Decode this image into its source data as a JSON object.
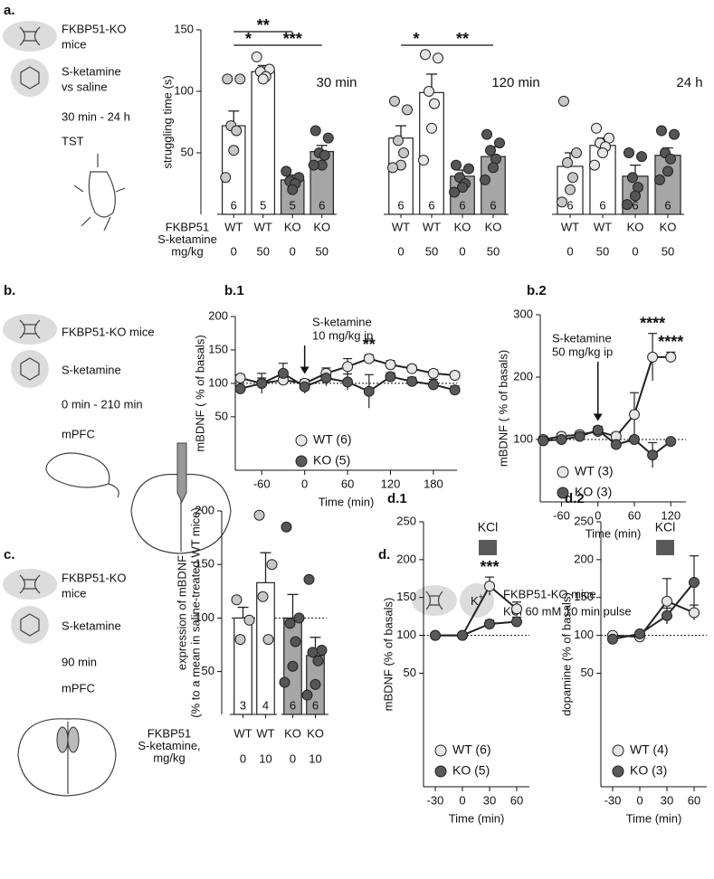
{
  "panel_labels": {
    "a": "a.",
    "b": "b.",
    "c": "c.",
    "d": "d."
  },
  "sidebar_a": [
    "FKBP51-KO",
    "mice",
    "S-ketamine",
    "vs saline",
    "30 min - 24 h",
    "TST"
  ],
  "sidebar_b": [
    "FKBP51-KO mice",
    "S-ketamine",
    "0 min - 210 min",
    "mPFC"
  ],
  "sidebar_c": [
    "FKBP51-KO",
    "mice",
    "S-ketamine",
    "90 min",
    "mPFC"
  ],
  "header_d": {
    "ion": "K",
    "charge": "+",
    "lines": [
      "FKBP51-KO mice",
      "KCl 60 mM 10 min pulse"
    ]
  },
  "chart_data": [
    {
      "type": "bar",
      "title": "30 min",
      "ylabel": [
        "struggling time (s)"
      ],
      "row_labels": [
        "FKBP51",
        "S-ketamine",
        "mg/kg"
      ],
      "categories": [
        "WT",
        "WT",
        "KO",
        "KO"
      ],
      "doses": [
        0,
        50,
        0,
        50
      ],
      "values": [
        72,
        116,
        28,
        51
      ],
      "errors": [
        12,
        5,
        4,
        5
      ],
      "n_labels": [
        6,
        5,
        5,
        6
      ],
      "points": [
        [
          110,
          110,
          72,
          68,
          52,
          30
        ],
        [
          128,
          118,
          116,
          112,
          110
        ],
        [
          35,
          30,
          27,
          25,
          20
        ],
        [
          68,
          62,
          50,
          48,
          40,
          40
        ]
      ],
      "colors": [
        "#ffffff",
        "#ffffff",
        "#a6a6a6",
        "#a6a6a6"
      ],
      "point_colors": [
        "#c8c8c8",
        "#e6e6e6",
        "#555555",
        "#555555"
      ],
      "ylim": [
        0,
        150
      ],
      "yticks": [
        50,
        100,
        150
      ],
      "significance": [
        {
          "label": "**",
          "between": [
            0,
            2
          ]
        },
        {
          "label": "*",
          "between": [
            0,
            1
          ]
        },
        {
          "label": "***",
          "between": [
            1,
            3
          ]
        }
      ]
    },
    {
      "type": "bar",
      "title": "120 min",
      "categories": [
        "WT",
        "WT",
        "KO",
        "KO"
      ],
      "doses": [
        0,
        50,
        0,
        50
      ],
      "values": [
        62,
        99,
        31,
        47
      ],
      "errors": [
        10,
        15,
        5,
        8
      ],
      "n_labels": [
        6,
        6,
        6,
        6
      ],
      "points": [
        [
          92,
          85,
          60,
          50,
          40,
          38
        ],
        [
          130,
          127,
          100,
          90,
          70,
          44
        ],
        [
          40,
          37,
          30,
          25,
          22,
          18
        ],
        [
          65,
          58,
          52,
          45,
          38,
          28
        ]
      ],
      "colors": [
        "#ffffff",
        "#ffffff",
        "#a6a6a6",
        "#a6a6a6"
      ],
      "point_colors": [
        "#c8c8c8",
        "#e6e6e6",
        "#555555",
        "#555555"
      ],
      "ylim": [
        0,
        150
      ],
      "significance": [
        {
          "label": "*",
          "between": [
            0,
            1
          ]
        },
        {
          "label": "**",
          "between": [
            1,
            3
          ]
        }
      ]
    },
    {
      "type": "bar",
      "title": "24 h",
      "categories": [
        "WT",
        "WT",
        "KO",
        "KO"
      ],
      "doses": [
        0,
        50,
        0,
        50
      ],
      "values": [
        39,
        56,
        31,
        48
      ],
      "errors": [
        11,
        6,
        9,
        6
      ],
      "n_labels": [
        6,
        6,
        6,
        6
      ],
      "points": [
        [
          92,
          50,
          42,
          30,
          20,
          10
        ],
        [
          70,
          62,
          58,
          55,
          50,
          40
        ],
        [
          50,
          47,
          30,
          22,
          15,
          8
        ],
        [
          68,
          65,
          50,
          45,
          35,
          28
        ]
      ],
      "colors": [
        "#ffffff",
        "#ffffff",
        "#a6a6a6",
        "#a6a6a6"
      ],
      "point_colors": [
        "#c8c8c8",
        "#e6e6e6",
        "#555555",
        "#555555"
      ],
      "ylim": [
        0,
        150
      ]
    },
    {
      "type": "line",
      "title": "b.1",
      "xlabel": "Time (min)",
      "ylabel": [
        "mBDNF ( % of basals)"
      ],
      "x": [
        -90,
        -60,
        -30,
        0,
        30,
        60,
        90,
        120,
        150,
        180,
        210
      ],
      "series": [
        {
          "name": "WT (6)",
          "color": "#e6e6e6",
          "values": [
            108,
            100,
            105,
            100,
            115,
            125,
            137,
            128,
            122,
            115,
            112
          ],
          "errors": [
            5,
            8,
            5,
            6,
            8,
            12,
            6,
            6,
            5,
            5,
            5
          ]
        },
        {
          "name": "KO (5)",
          "color": "#595959",
          "values": [
            92,
            100,
            115,
            95,
            108,
            102,
            88,
            110,
            103,
            98,
            90
          ],
          "errors": [
            5,
            15,
            15,
            10,
            12,
            12,
            25,
            6,
            6,
            8,
            6
          ]
        }
      ],
      "xlim": [
        -97,
        213
      ],
      "xticks": [
        -60,
        0,
        60,
        120,
        180
      ],
      "ylim": [
        -30,
        200
      ],
      "yticks": [
        50,
        100,
        150,
        200
      ],
      "reference_line": 100,
      "arrow": {
        "text": [
          "S-ketamine",
          "10 mg/kg ip"
        ],
        "x": 0
      },
      "annotations": [
        {
          "text": "**",
          "x": 90
        }
      ]
    },
    {
      "type": "line",
      "title": "b.2",
      "xlabel": "Time (min)",
      "ylabel": [
        "mBDNF  ( % of basals)"
      ],
      "x": [
        -90,
        -60,
        -30,
        0,
        30,
        60,
        90,
        120
      ],
      "series": [
        {
          "name": "WT (3)",
          "color": "#e6e6e6",
          "values": [
            100,
            105,
            108,
            113,
            105,
            140,
            232,
            232
          ],
          "errors": [
            5,
            5,
            5,
            8,
            6,
            35,
            38,
            8
          ]
        },
        {
          "name": "KO (3)",
          "color": "#595959",
          "values": [
            98,
            100,
            105,
            115,
            92,
            100,
            75,
            97
          ],
          "errors": [
            3,
            3,
            5,
            5,
            4,
            5,
            20,
            3
          ]
        }
      ],
      "xlim": [
        -95,
        145
      ],
      "xticks": [
        -60,
        0,
        60,
        120
      ],
      "ylim": [
        0,
        300
      ],
      "yticks": [
        100,
        200,
        300
      ],
      "reference_line": 100,
      "arrow": {
        "text": [
          "S-ketamine",
          "50 mg/kg ip"
        ],
        "x": 0
      },
      "annotations": [
        {
          "text": "****",
          "x": 90
        },
        {
          "text": "****",
          "x": 120
        }
      ]
    },
    {
      "type": "bar",
      "ylabel": [
        "expression of mBDNF",
        "(% to a mean in saline-treated WT mice)"
      ],
      "row_labels": [
        "FKBP51",
        "S-ketamine,",
        "mg/kg"
      ],
      "categories": [
        "WT",
        "WT",
        "KO",
        "KO"
      ],
      "doses": [
        0,
        10,
        0,
        10
      ],
      "values": [
        100,
        133,
        100,
        65
      ],
      "errors": [
        10,
        28,
        22,
        17
      ],
      "n_labels": [
        3,
        4,
        6,
        6
      ],
      "points": [
        [
          117,
          98,
          80
        ],
        [
          196,
          150,
          120,
          80
        ],
        [
          185,
          100,
          95,
          78,
          55,
          40
        ],
        [
          136,
          70,
          68,
          60,
          38,
          28
        ]
      ],
      "colors": [
        "#ffffff",
        "#ffffff",
        "#a6a6a6",
        "#a6a6a6"
      ],
      "point_colors": [
        "#c8c8c8",
        "#c8c8c8",
        "#555555",
        "#555555"
      ],
      "ylim": [
        10,
        200
      ],
      "yticks": [
        50,
        100,
        150,
        200
      ],
      "reference_line": 100
    },
    {
      "type": "line",
      "title": "d.1",
      "xlabel": "Time (min)",
      "ylabel": [
        "mBDNF (% of basals)"
      ],
      "x": [
        -30,
        0,
        30,
        60
      ],
      "series": [
        {
          "name": "WT (6)",
          "color": "#e6e6e6",
          "values": [
            100,
            100,
            165,
            135
          ],
          "errors": [
            3,
            3,
            12,
            9
          ]
        },
        {
          "name": "KO (5)",
          "color": "#595959",
          "values": [
            100,
            100,
            115,
            118
          ],
          "errors": [
            2,
            2,
            5,
            6
          ]
        }
      ],
      "xlim": [
        -43,
        74
      ],
      "xticks": [
        -30,
        0,
        30,
        60
      ],
      "ylim": [
        -100,
        250
      ],
      "yticks": [
        50,
        100,
        150,
        200,
        250
      ],
      "reference_line": 100,
      "pulse": {
        "label": "KCl",
        "x": [
          18,
          38
        ]
      },
      "annotations": [
        {
          "text": "***",
          "x": 30
        }
      ]
    },
    {
      "type": "line",
      "title": "d.2",
      "xlabel": "Time (min)",
      "ylabel": [
        "dopamine (% of basals)"
      ],
      "x": [
        -30,
        0,
        30,
        60
      ],
      "series": [
        {
          "name": "WT (4)",
          "color": "#e6e6e6",
          "values": [
            100,
            98,
            145,
            130
          ],
          "errors": [
            3,
            3,
            30,
            10
          ]
        },
        {
          "name": "KO (3)",
          "color": "#595959",
          "values": [
            95,
            102,
            126,
            170
          ],
          "errors": [
            2,
            3,
            10,
            35
          ]
        }
      ],
      "xlim": [
        -43,
        74
      ],
      "xticks": [
        -30,
        0,
        30,
        60
      ],
      "ylim": [
        -100,
        250
      ],
      "yticks": [
        50,
        100,
        150,
        200,
        250
      ],
      "reference_line": 100,
      "pulse": {
        "label": "KCl",
        "x": [
          18,
          38
        ]
      }
    }
  ]
}
